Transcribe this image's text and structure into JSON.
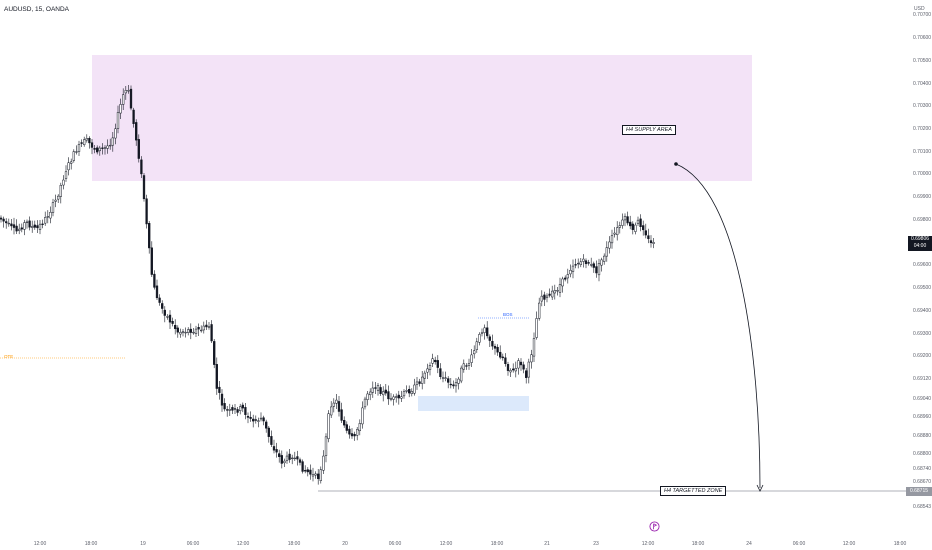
{
  "header": {
    "symbol": "AUDUSD, 15, OANDA",
    "currency": "USD"
  },
  "price_axis": {
    "ticks": [
      "0.70700",
      "0.70600",
      "0.70500",
      "0.70400",
      "0.70300",
      "0.70200",
      "0.70100",
      "0.70000",
      "0.69900",
      "0.69800",
      "0.69700",
      "0.69600",
      "0.69500",
      "0.69400",
      "0.69300",
      "0.69200",
      "0.69120",
      "0.69040",
      "0.68960",
      "0.68880",
      "0.68800",
      "0.68740",
      "0.68670",
      "0.68620",
      "0.68543"
    ],
    "last_price": "0.69806",
    "countdown": "04:00",
    "target_price": "0.68715"
  },
  "time_axis": {
    "ticks": [
      "12:00",
      "18:00",
      "19",
      "06:00",
      "12:00",
      "18:00",
      "20",
      "06:00",
      "12:00",
      "18:00",
      "21",
      "06:00",
      "23",
      "12:00",
      "18:00",
      "24",
      "06:00",
      "12:00",
      "18:00"
    ]
  },
  "annotations": {
    "supply_area": "H4 SUPPLY AREA",
    "target_zone": "H4 TARGETTED ZONE",
    "bos": "BOS",
    "ote": "OTE"
  },
  "colors": {
    "up": "#ffffff",
    "down": "#131722",
    "supply_zone": "#f3e3f7",
    "demand_zone": "#dce9fb",
    "ote_line": "#ff9800",
    "bos_line": "#2962ff",
    "flag_icon": "#9c27b0"
  },
  "icons": {
    "flag": "flag-icon"
  },
  "chart_data": {
    "type": "candlestick",
    "title": "AUDUSD, 15, OANDA",
    "xlabel": "",
    "ylabel": "USD",
    "ylim": [
      0.68543,
      0.7076
    ],
    "x": [
      "18 12:00",
      "18 18:00",
      "19 00:00",
      "19 06:00",
      "19 12:00",
      "19 18:00",
      "20 00:00",
      "20 06:00",
      "20 12:00",
      "20 18:00",
      "21 00:00",
      "21 06:00",
      "23 00:00",
      "23 12:00"
    ],
    "close": [
      0.699,
      0.7025,
      0.7045,
      0.6965,
      0.6935,
      0.689,
      0.688,
      0.6915,
      0.692,
      0.695,
      0.6925,
      0.6965,
      0.6975,
      0.69806
    ],
    "series": [
      {
        "name": "H4 SUPPLY AREA",
        "type": "zone",
        "y_range": [
          0.70107,
          0.7064
        ],
        "x_range": [
          "18 17:00",
          "24 00:00"
        ]
      },
      {
        "name": "H4 TARGETTED ZONE",
        "type": "level",
        "y": 0.68715
      },
      {
        "name": "OTE",
        "type": "level",
        "y": 0.69335
      },
      {
        "name": "BOS",
        "type": "level",
        "y": 0.6951
      }
    ],
    "grid": false,
    "legend": "none"
  }
}
